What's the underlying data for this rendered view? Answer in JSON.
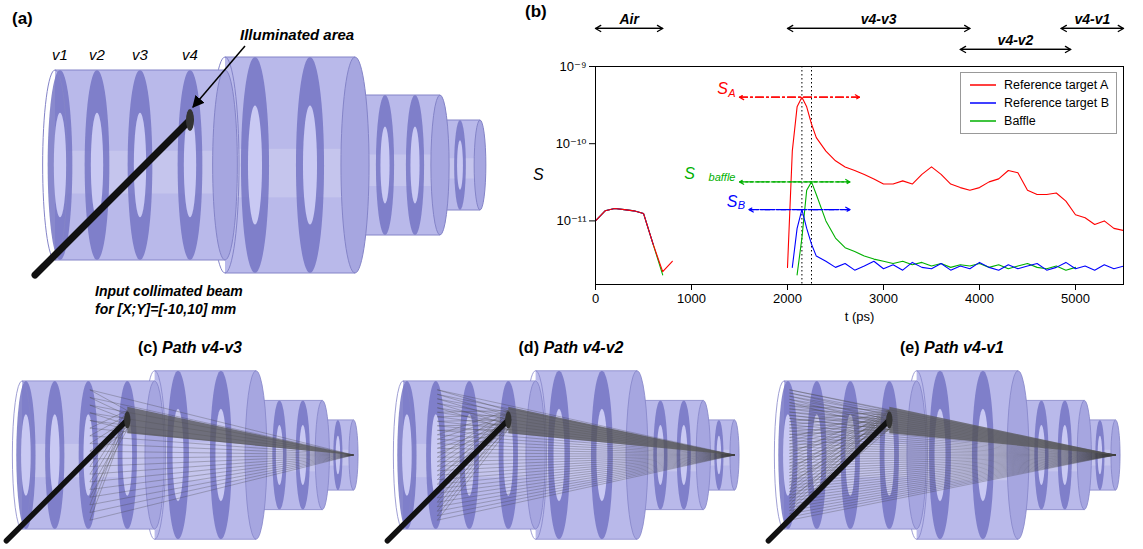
{
  "chart_data": {
    "type": "line",
    "panel": "(b)",
    "x_label": "t (ps)",
    "y_label": "S",
    "log": "y",
    "grid": false,
    "legend": "upper right",
    "xlim": [
      0,
      5500
    ],
    "xticks": [
      0,
      1000,
      2000,
      3000,
      4000,
      5000
    ],
    "ylim": [
      1.5e-12,
      1e-09
    ],
    "yticks": [
      {
        "value": 1e-11,
        "label": "10⁻¹¹"
      },
      {
        "value": 1e-10,
        "label": "10⁻¹⁰"
      },
      {
        "value": 1e-09,
        "label": "10⁻⁹"
      }
    ],
    "x": [
      0,
      100,
      200,
      300,
      400,
      500,
      600,
      700,
      800,
      1000,
      2000,
      2050,
      2100,
      2150,
      2200,
      2250,
      2300,
      2400,
      2500,
      2600,
      2700,
      2800,
      2900,
      3000,
      3100,
      3200,
      3300,
      3400,
      3500,
      3600,
      3700,
      3800,
      3900,
      4000,
      4100,
      4200,
      4300,
      4400,
      4500,
      4600,
      4700,
      4800,
      4900,
      5000,
      5100,
      5200,
      5300,
      5400,
      5500
    ],
    "series": [
      {
        "name": "Reference target A",
        "color": "#ff0000",
        "values": [
          1e-11,
          1.35e-11,
          1.45e-11,
          1.4e-11,
          1.35e-11,
          1.25e-11,
          5e-12,
          2.2e-12,
          3e-12,
          null,
          2.5e-12,
          8e-11,
          3e-10,
          4e-10,
          3e-10,
          1.8e-10,
          1.2e-10,
          8e-11,
          6e-11,
          5e-11,
          4.5e-11,
          4e-11,
          3.5e-11,
          3e-11,
          3e-11,
          3.3e-11,
          3e-11,
          4e-11,
          5e-11,
          4e-11,
          3e-11,
          2.7e-11,
          2.5e-11,
          2.7e-11,
          3.2e-11,
          3.5e-11,
          4.5e-11,
          4.2e-11,
          2.5e-11,
          2.2e-11,
          2.2e-11,
          2.3e-11,
          1.8e-11,
          1.2e-11,
          1.1e-11,
          9e-12,
          1e-11,
          8e-12,
          7.5e-12
        ]
      },
      {
        "name": "Reference target B",
        "color": "#0000ff",
        "values": [
          1e-11,
          1.35e-11,
          1.45e-11,
          1.4e-11,
          1.35e-11,
          1.25e-11,
          5e-12,
          null,
          null,
          null,
          null,
          2.5e-12,
          8e-12,
          1.4e-11,
          8e-12,
          5e-12,
          3.5e-12,
          3e-12,
          2.5e-12,
          2.8e-12,
          2.3e-12,
          2.6e-12,
          3e-12,
          2.4e-12,
          2.7e-12,
          2.3e-12,
          2.9e-12,
          2.5e-12,
          2.4e-12,
          2.8e-12,
          2.3e-12,
          2.6e-12,
          2.4e-12,
          2.9e-12,
          2.5e-12,
          2.3e-12,
          2.7e-12,
          2.4e-12,
          2.6e-12,
          2.8e-12,
          2.3e-12,
          2.5e-12,
          2.9e-12,
          2.4e-12,
          2.6e-12,
          2.3e-12,
          2.7e-12,
          2.4e-12,
          2.6e-12
        ]
      },
      {
        "name": "Baffle",
        "color": "#00b000",
        "values": [
          1e-11,
          1.35e-11,
          1.45e-11,
          1.4e-11,
          1.35e-11,
          1.25e-11,
          5e-12,
          2e-12,
          null,
          null,
          null,
          null,
          2e-12,
          6e-12,
          2.5e-11,
          3.2e-11,
          2.2e-11,
          1e-11,
          6e-12,
          4.5e-12,
          4e-12,
          3.5e-12,
          3.2e-12,
          3e-12,
          2.8e-12,
          3e-12,
          2.7e-12,
          2.9e-12,
          2.6e-12,
          2.8e-12,
          2.5e-12,
          2.7e-12,
          2.6e-12,
          2.8e-12,
          2.5e-12,
          2.7e-12,
          2.4e-12,
          2.6e-12,
          2.8e-12,
          2.5e-12,
          2.4e-12,
          2.6e-12,
          2.3e-12,
          2.5e-12,
          null,
          null,
          null,
          null,
          null
        ]
      }
    ],
    "ranges": [
      {
        "text": "Air",
        "t_range": [
          0,
          700
        ]
      },
      {
        "text": "v4-v3",
        "t_range": [
          2000,
          3900
        ]
      },
      {
        "text": "v4-v2",
        "t_range": [
          3800,
          4950
        ]
      },
      {
        "text": "v4-v1",
        "t_range": [
          4850,
          5500
        ]
      }
    ],
    "annotations": [
      {
        "text": "S",
        "subscript": "A",
        "series": "Reference target A",
        "value": 4e-10,
        "t_range": [
          1500,
          2750
        ]
      },
      {
        "text": "S",
        "subscript": "baffle",
        "series": "Baffle",
        "value": 3.2e-11,
        "t_range": [
          1500,
          2650
        ]
      },
      {
        "text": "S",
        "subscript": "B",
        "series": "Reference target B",
        "value": 1.4e-11,
        "t_range": [
          1600,
          2650
        ]
      }
    ],
    "vlines": [
      2150,
      2250
    ]
  },
  "diagrams": {
    "a": {
      "panel": "(a)",
      "vane_labels": [
        "v1",
        "v2",
        "v3",
        "v4"
      ],
      "callout": "Illuminated area",
      "beam_label": [
        "Input collimated beam",
        "for [X;Y]=[-10,10] mm"
      ]
    },
    "c": {
      "panel": "(c)",
      "title": "Path v4-v3",
      "path": [
        "v4",
        "v3"
      ]
    },
    "d": {
      "panel": "(d)",
      "title": "Path v4-v2",
      "path": [
        "v4",
        "v2"
      ]
    },
    "e": {
      "panel": "(e)",
      "title": "Path v4-v1",
      "path": [
        "v4",
        "v1"
      ]
    }
  }
}
